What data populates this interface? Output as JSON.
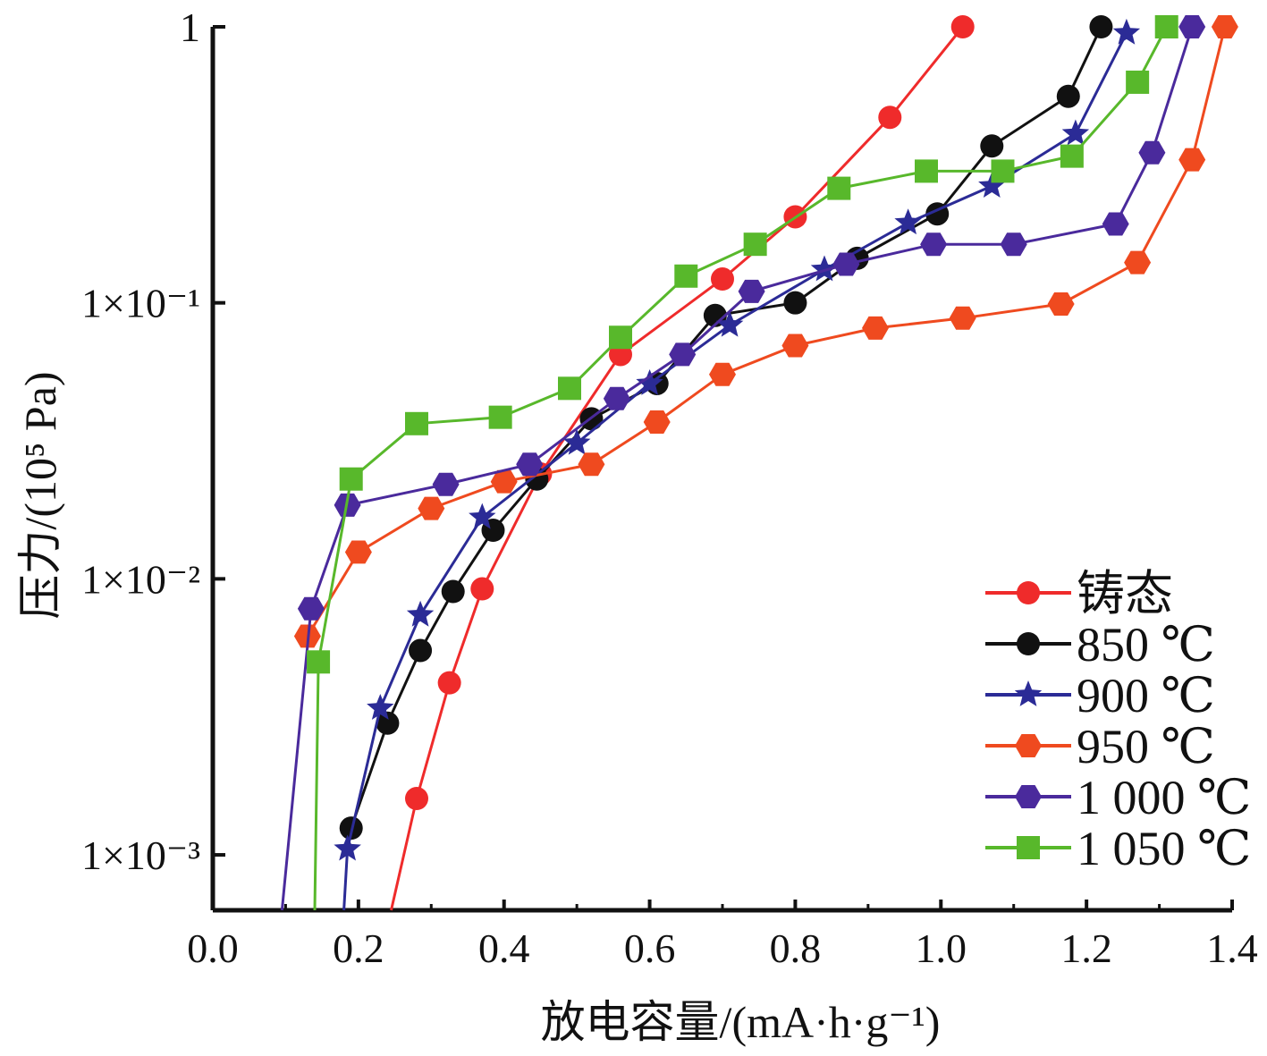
{
  "chart_data": {
    "type": "line",
    "title": "",
    "xlabel": "放电容量/(mA·h·g⁻¹)",
    "ylabel": "压力/(10⁵ Pa)",
    "x_scale": "linear",
    "y_scale": "log",
    "xlim": [
      0.0,
      1.4
    ],
    "ylim": [
      0.00063,
      1.0
    ],
    "x_ticks": [
      {
        "value": 0.0,
        "label": "0.0"
      },
      {
        "value": 0.2,
        "label": "0.2"
      },
      {
        "value": 0.4,
        "label": "0.4"
      },
      {
        "value": 0.6,
        "label": "0.6"
      },
      {
        "value": 0.8,
        "label": "0.8"
      },
      {
        "value": 1.0,
        "label": "1.0"
      },
      {
        "value": 1.2,
        "label": "1.2"
      },
      {
        "value": 1.4,
        "label": "1.4"
      }
    ],
    "y_ticks": [
      {
        "value": 0.001,
        "label": "1×10⁻³"
      },
      {
        "value": 0.01,
        "label": "1×10⁻²"
      },
      {
        "value": 0.1,
        "label": "1×10⁻¹"
      },
      {
        "value": 1.0,
        "label": "1"
      }
    ],
    "grid": false,
    "legend_position": "bottom-right",
    "series": [
      {
        "name": "铸态",
        "color": "#ef2b2b",
        "marker": "circle",
        "points": [
          [
            0.245,
            0.0006
          ],
          [
            0.28,
            0.0016
          ],
          [
            0.325,
            0.0042
          ],
          [
            0.37,
            0.0092
          ],
          [
            0.45,
            0.024
          ],
          [
            0.56,
            0.065
          ],
          [
            0.7,
            0.122
          ],
          [
            0.8,
            0.205
          ],
          [
            0.93,
            0.47
          ],
          [
            1.03,
            1.0
          ]
        ]
      },
      {
        "name": "850 ℃",
        "color": "#111111",
        "marker": "circle",
        "points": [
          [
            0.19,
            0.00125
          ],
          [
            0.24,
            0.003
          ],
          [
            0.285,
            0.0055
          ],
          [
            0.33,
            0.009
          ],
          [
            0.385,
            0.015
          ],
          [
            0.445,
            0.023
          ],
          [
            0.52,
            0.038
          ],
          [
            0.61,
            0.051
          ],
          [
            0.69,
            0.09
          ],
          [
            0.8,
            0.1
          ],
          [
            0.885,
            0.145
          ],
          [
            0.995,
            0.21
          ],
          [
            1.07,
            0.37
          ],
          [
            1.175,
            0.56
          ],
          [
            1.22,
            1.0
          ]
        ]
      },
      {
        "name": "900 ℃",
        "color": "#2b2b96",
        "marker": "star",
        "points": [
          [
            0.18,
            0.0006
          ],
          [
            0.185,
            0.00105
          ],
          [
            0.23,
            0.0034
          ],
          [
            0.285,
            0.0074
          ],
          [
            0.37,
            0.0167
          ],
          [
            0.5,
            0.031
          ],
          [
            0.6,
            0.051
          ],
          [
            0.71,
            0.083
          ],
          [
            0.84,
            0.132
          ],
          [
            0.955,
            0.195
          ],
          [
            1.07,
            0.265
          ],
          [
            1.185,
            0.41
          ],
          [
            1.255,
            0.95
          ]
        ]
      },
      {
        "name": "950 ℃",
        "color": "#ef4a1f",
        "marker": "hexagon",
        "points": [
          [
            0.13,
            0.0062
          ],
          [
            0.2,
            0.0125
          ],
          [
            0.3,
            0.018
          ],
          [
            0.4,
            0.0225
          ],
          [
            0.52,
            0.026
          ],
          [
            0.61,
            0.037
          ],
          [
            0.7,
            0.055
          ],
          [
            0.8,
            0.07
          ],
          [
            0.91,
            0.081
          ],
          [
            1.03,
            0.088
          ],
          [
            1.165,
            0.099
          ],
          [
            1.27,
            0.14
          ],
          [
            1.345,
            0.33
          ],
          [
            1.39,
            1.0
          ]
        ]
      },
      {
        "name": "1 000 ℃",
        "color": "#4a2a9c",
        "marker": "hexagon",
        "points": [
          [
            0.095,
            0.0006
          ],
          [
            0.135,
            0.0078
          ],
          [
            0.185,
            0.0185
          ],
          [
            0.32,
            0.022
          ],
          [
            0.435,
            0.026
          ],
          [
            0.555,
            0.045
          ],
          [
            0.645,
            0.065
          ],
          [
            0.74,
            0.11
          ],
          [
            0.87,
            0.138
          ],
          [
            0.99,
            0.163
          ],
          [
            1.1,
            0.163
          ],
          [
            1.24,
            0.193
          ],
          [
            1.29,
            0.35
          ],
          [
            1.345,
            1.0
          ]
        ]
      },
      {
        "name": "1 050 ℃",
        "color": "#58b82b",
        "marker": "square",
        "points": [
          [
            0.14,
            0.0006
          ],
          [
            0.145,
            0.005
          ],
          [
            0.19,
            0.023
          ],
          [
            0.28,
            0.0365
          ],
          [
            0.395,
            0.0385
          ],
          [
            0.49,
            0.049
          ],
          [
            0.56,
            0.075
          ],
          [
            0.65,
            0.125
          ],
          [
            0.745,
            0.163
          ],
          [
            0.86,
            0.26
          ],
          [
            0.98,
            0.3
          ],
          [
            1.085,
            0.3
          ],
          [
            1.18,
            0.34
          ],
          [
            1.27,
            0.63
          ],
          [
            1.31,
            1.0
          ]
        ]
      }
    ]
  }
}
